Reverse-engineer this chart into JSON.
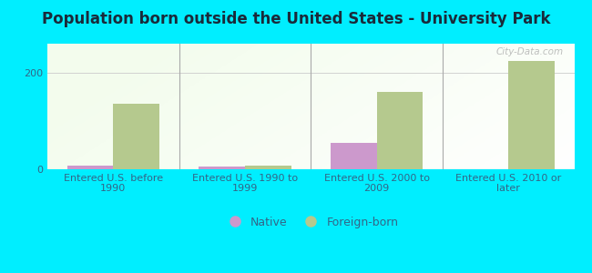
{
  "title": "Population born outside the United States - University Park",
  "categories": [
    "Entered U.S. before\n1990",
    "Entered U.S. 1990 to\n1999",
    "Entered U.S. 2000 to\n2009",
    "Entered U.S. 2010 or\nlater"
  ],
  "native_values": [
    8,
    5,
    55,
    0
  ],
  "foreign_values": [
    135,
    8,
    160,
    225
  ],
  "native_color": "#cc99cc",
  "foreign_color": "#b5c98e",
  "background_color": "#00eeff",
  "plot_bg_color": "#e8f5e8",
  "ylim": [
    0,
    260
  ],
  "yticks": [
    0,
    200
  ],
  "bar_width": 0.35,
  "legend_native": "Native",
  "legend_foreign": "Foreign-born",
  "title_fontsize": 12,
  "tick_fontsize": 8,
  "legend_fontsize": 9,
  "title_color": "#1a2a3a",
  "tick_color": "#336688",
  "watermark": "City-Data.com"
}
